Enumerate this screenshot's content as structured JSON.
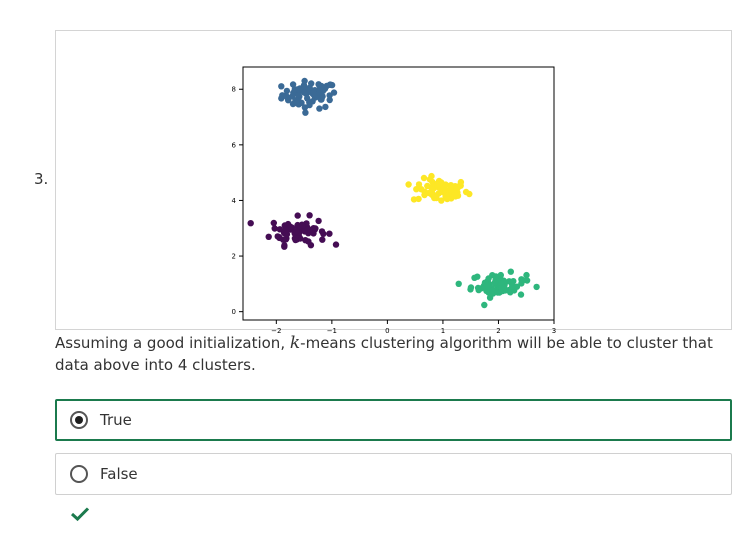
{
  "question": {
    "number": "3.",
    "text_before": "Assuming a good initialization, ",
    "k_symbol": "k",
    "text_after": "-means clustering algorithm will be able to cluster that data above into 4 clusters."
  },
  "options": [
    {
      "label": "True",
      "selected": true
    },
    {
      "label": "False",
      "selected": false
    }
  ],
  "feedback": {
    "icon": "checkmark-icon",
    "color": "#1b7a4d"
  },
  "chart_data": {
    "type": "scatter",
    "xlim": [
      -2.6,
      3.0
    ],
    "ylim": [
      -0.3,
      8.8
    ],
    "x_ticks": [
      -2,
      -1,
      0,
      1,
      2,
      3
    ],
    "y_ticks": [
      0,
      2,
      4,
      6,
      8
    ],
    "series": [
      {
        "color": "#3b6a96",
        "center": [
          -1.4,
          7.8
        ],
        "spread": [
          0.45,
          0.35
        ],
        "count": 70
      },
      {
        "color": "#fde725",
        "center": [
          0.95,
          4.35
        ],
        "spread": [
          0.45,
          0.3
        ],
        "count": 70
      },
      {
        "color": "#450d54",
        "center": [
          -1.6,
          2.9
        ],
        "spread": [
          0.45,
          0.35
        ],
        "count": 70
      },
      {
        "color": "#2eb67d",
        "center": [
          2.0,
          0.95
        ],
        "spread": [
          0.45,
          0.3
        ],
        "count": 70
      }
    ]
  }
}
